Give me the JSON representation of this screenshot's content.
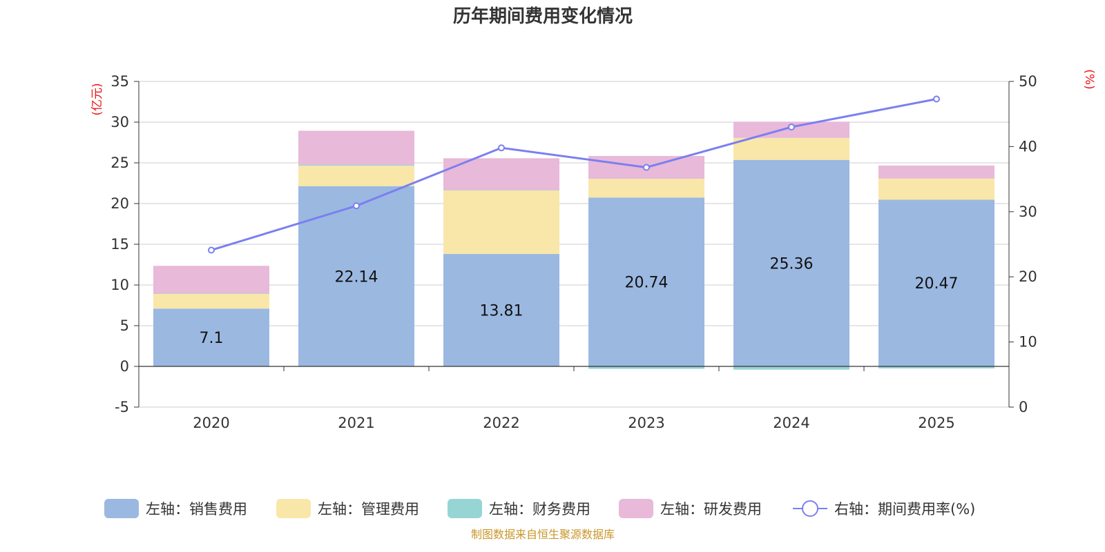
{
  "chart_data": {
    "type": "bar",
    "title": "历年期间费用变化情况",
    "categories": [
      "2020",
      "2021",
      "2022",
      "2023",
      "2024",
      "2025"
    ],
    "left_axis": {
      "unit": "(亿元)",
      "ylim": [
        -5,
        35
      ],
      "ticks": [
        -5,
        0,
        5,
        10,
        15,
        20,
        25,
        30,
        35
      ]
    },
    "right_axis": {
      "unit": "(%)",
      "ylim": [
        0,
        50
      ],
      "ticks": [
        0,
        10,
        20,
        30,
        40,
        50
      ]
    },
    "series": [
      {
        "name": "左轴：销售费用",
        "type": "bar",
        "axis": "left",
        "color": "#9bb8e1",
        "values": [
          7.1,
          22.14,
          13.81,
          20.74,
          25.36,
          20.47
        ],
        "labels": [
          "7.1",
          "22.14",
          "13.81",
          "20.74",
          "25.36",
          "20.47"
        ]
      },
      {
        "name": "左轴：管理费用",
        "type": "bar",
        "axis": "left",
        "color": "#f8e7a9",
        "values": [
          1.8,
          2.5,
          7.8,
          2.3,
          2.7,
          2.6
        ]
      },
      {
        "name": "左轴：财务费用",
        "type": "bar",
        "axis": "left",
        "color": "#97d5d5",
        "values": [
          0.05,
          0.1,
          0.05,
          -0.3,
          -0.4,
          -0.25
        ]
      },
      {
        "name": "左轴：研发费用",
        "type": "bar",
        "axis": "left",
        "color": "#e8b9d8",
        "values": [
          3.4,
          4.2,
          3.9,
          2.8,
          2.0,
          1.6
        ]
      },
      {
        "name": "右轴：期间费用率(%)",
        "type": "line",
        "axis": "right",
        "color": "#7b7ff0",
        "values": [
          24.1,
          30.9,
          39.8,
          36.8,
          43.0,
          47.3
        ]
      }
    ]
  },
  "footer": {
    "source": "制图数据来自恒生聚源数据库",
    "source_color": "#c9962a"
  }
}
